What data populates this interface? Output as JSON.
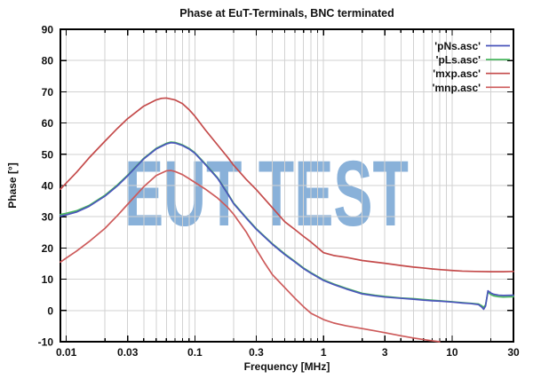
{
  "chart_data": {
    "type": "line",
    "title": "Phase at EuT-Terminals, BNC terminated",
    "xlabel": "Frequency [MHz]",
    "ylabel": "Phase [°]",
    "x_scale": "log",
    "xlim": [
      0.009,
      30
    ],
    "ylim": [
      -10,
      90
    ],
    "x_major_ticks": [
      0.01,
      0.03,
      0.1,
      0.3,
      1,
      3,
      10,
      30
    ],
    "x_major_tick_labels": [
      "0.01",
      "0.03",
      "0.1",
      "0.3",
      "1",
      "3",
      "10",
      "30"
    ],
    "y_ticks": [
      -10,
      0,
      10,
      20,
      30,
      40,
      50,
      60,
      70,
      80,
      90
    ],
    "grid": true,
    "legend_position": "top-right-inside",
    "watermark": {
      "text": "EUT TEST",
      "color": "#7da9d5",
      "opacity": 0.9
    },
    "colors": {
      "grid": "#d2d2d2",
      "axis": "#000000",
      "text": "#111111"
    },
    "series": [
      {
        "name": "'pLs.asc'",
        "color": "#49b55e",
        "legend_order": 2,
        "points": [
          [
            0.009,
            30.7
          ],
          [
            0.01,
            31.1
          ],
          [
            0.012,
            31.9
          ],
          [
            0.015,
            33.6
          ],
          [
            0.02,
            36.9
          ],
          [
            0.025,
            40.2
          ],
          [
            0.03,
            43.3
          ],
          [
            0.04,
            48.7
          ],
          [
            0.05,
            51.9
          ],
          [
            0.06,
            53.5
          ],
          [
            0.065,
            53.9
          ],
          [
            0.07,
            53.8
          ],
          [
            0.08,
            53.0
          ],
          [
            0.09,
            51.9
          ],
          [
            0.1,
            50.5
          ],
          [
            0.12,
            47.0
          ],
          [
            0.15,
            42.5
          ],
          [
            0.18,
            37.5
          ],
          [
            0.2,
            34.4
          ],
          [
            0.25,
            29.8
          ],
          [
            0.3,
            26.2
          ],
          [
            0.4,
            21.4
          ],
          [
            0.5,
            18.1
          ],
          [
            0.6,
            15.7
          ],
          [
            0.7,
            13.6
          ],
          [
            0.8,
            12.1
          ],
          [
            1.0,
            9.8
          ],
          [
            1.2,
            8.5
          ],
          [
            1.5,
            7.1
          ],
          [
            2.0,
            5.5
          ],
          [
            2.5,
            4.9
          ],
          [
            3.0,
            4.5
          ],
          [
            4.0,
            4.0
          ],
          [
            5.0,
            3.8
          ],
          [
            6.0,
            3.5
          ],
          [
            7.0,
            3.3
          ],
          [
            8.0,
            3.1
          ],
          [
            10,
            2.8
          ],
          [
            12,
            2.5
          ],
          [
            14,
            2.3
          ],
          [
            16,
            2.1
          ],
          [
            17,
            1.5
          ],
          [
            17.6,
            1.0
          ],
          [
            18.2,
            1.8
          ],
          [
            19,
            5.9
          ],
          [
            20,
            5.1
          ],
          [
            21,
            4.7
          ],
          [
            23,
            4.4
          ],
          [
            25,
            4.3
          ],
          [
            30,
            4.4
          ]
        ]
      },
      {
        "name": "'pNs.asc'",
        "color": "#4a55bb",
        "legend_order": 1,
        "points": [
          [
            0.009,
            30.2
          ],
          [
            0.01,
            30.6
          ],
          [
            0.012,
            31.5
          ],
          [
            0.015,
            33.3
          ],
          [
            0.02,
            36.6
          ],
          [
            0.025,
            39.9
          ],
          [
            0.03,
            43.1
          ],
          [
            0.04,
            48.5
          ],
          [
            0.05,
            51.7
          ],
          [
            0.06,
            53.3
          ],
          [
            0.065,
            53.7
          ],
          [
            0.07,
            53.6
          ],
          [
            0.08,
            52.8
          ],
          [
            0.09,
            51.7
          ],
          [
            0.1,
            50.3
          ],
          [
            0.12,
            46.8
          ],
          [
            0.15,
            42.3
          ],
          [
            0.18,
            37.3
          ],
          [
            0.2,
            34.2
          ],
          [
            0.25,
            29.6
          ],
          [
            0.3,
            26.0
          ],
          [
            0.4,
            21.2
          ],
          [
            0.5,
            17.9
          ],
          [
            0.6,
            15.5
          ],
          [
            0.7,
            13.4
          ],
          [
            0.8,
            11.9
          ],
          [
            1.0,
            9.6
          ],
          [
            1.2,
            8.3
          ],
          [
            1.5,
            6.9
          ],
          [
            2.0,
            5.3
          ],
          [
            2.5,
            4.7
          ],
          [
            3.0,
            4.3
          ],
          [
            4.0,
            3.9
          ],
          [
            5.0,
            3.6
          ],
          [
            6.0,
            3.3
          ],
          [
            7.0,
            3.1
          ],
          [
            8.0,
            3.0
          ],
          [
            10,
            2.7
          ],
          [
            12,
            2.4
          ],
          [
            14,
            2.2
          ],
          [
            16,
            1.9
          ],
          [
            17,
            1.1
          ],
          [
            17.6,
            0.4
          ],
          [
            18.2,
            1.4
          ],
          [
            19,
            6.3
          ],
          [
            20,
            5.6
          ],
          [
            21,
            5.2
          ],
          [
            23,
            4.9
          ],
          [
            25,
            4.8
          ],
          [
            30,
            4.9
          ]
        ]
      },
      {
        "name": "'mxp.asc'",
        "color": "#c44a4a",
        "legend_order": 3,
        "points": [
          [
            0.009,
            38.8
          ],
          [
            0.01,
            40.8
          ],
          [
            0.012,
            44.2
          ],
          [
            0.015,
            48.8
          ],
          [
            0.02,
            54.2
          ],
          [
            0.025,
            58.3
          ],
          [
            0.03,
            61.4
          ],
          [
            0.04,
            65.4
          ],
          [
            0.05,
            67.4
          ],
          [
            0.055,
            67.9
          ],
          [
            0.06,
            68.0
          ],
          [
            0.07,
            67.4
          ],
          [
            0.08,
            66.2
          ],
          [
            0.09,
            64.3
          ],
          [
            0.1,
            62.2
          ],
          [
            0.12,
            57.9
          ],
          [
            0.15,
            53.0
          ],
          [
            0.18,
            49.0
          ],
          [
            0.2,
            46.5
          ],
          [
            0.25,
            42.0
          ],
          [
            0.3,
            38.7
          ],
          [
            0.4,
            32.9
          ],
          [
            0.5,
            28.4
          ],
          [
            0.6,
            25.9
          ],
          [
            0.7,
            23.7
          ],
          [
            0.8,
            21.9
          ],
          [
            1.0,
            18.5
          ],
          [
            1.2,
            17.6
          ],
          [
            1.5,
            17.0
          ],
          [
            2.0,
            16.0
          ],
          [
            2.5,
            15.5
          ],
          [
            3.0,
            15.1
          ],
          [
            4.0,
            14.4
          ],
          [
            5.0,
            13.9
          ],
          [
            6.0,
            13.6
          ],
          [
            7.0,
            13.3
          ],
          [
            8.0,
            13.1
          ],
          [
            10,
            12.8
          ],
          [
            12,
            12.6
          ],
          [
            15,
            12.5
          ],
          [
            20,
            12.4
          ],
          [
            25,
            12.4
          ],
          [
            30,
            12.5
          ]
        ]
      },
      {
        "name": "'mnp.asc'",
        "color": "#cd5a5a",
        "legend_order": 4,
        "points": [
          [
            0.009,
            15.5
          ],
          [
            0.01,
            16.8
          ],
          [
            0.012,
            19.0
          ],
          [
            0.015,
            22.0
          ],
          [
            0.02,
            26.3
          ],
          [
            0.025,
            30.4
          ],
          [
            0.03,
            34.0
          ],
          [
            0.04,
            39.6
          ],
          [
            0.05,
            43.2
          ],
          [
            0.06,
            44.7
          ],
          [
            0.065,
            44.8
          ],
          [
            0.07,
            44.5
          ],
          [
            0.08,
            43.5
          ],
          [
            0.09,
            42.2
          ],
          [
            0.1,
            41.0
          ],
          [
            0.12,
            38.9
          ],
          [
            0.15,
            36.0
          ],
          [
            0.18,
            33.0
          ],
          [
            0.2,
            30.8
          ],
          [
            0.25,
            25.2
          ],
          [
            0.3,
            19.6
          ],
          [
            0.35,
            15.1
          ],
          [
            0.4,
            11.5
          ],
          [
            0.5,
            7.3
          ],
          [
            0.6,
            3.9
          ],
          [
            0.7,
            1.2
          ],
          [
            0.8,
            -0.9
          ],
          [
            1.0,
            -2.9
          ],
          [
            1.2,
            -4.0
          ],
          [
            1.5,
            -4.9
          ],
          [
            2.0,
            -5.8
          ],
          [
            2.5,
            -6.5
          ],
          [
            3.0,
            -7.1
          ],
          [
            4.0,
            -8.1
          ],
          [
            5.0,
            -8.8
          ],
          [
            6.0,
            -9.3
          ],
          [
            7.0,
            -9.7
          ],
          [
            8.0,
            -10.0
          ]
        ]
      }
    ]
  }
}
